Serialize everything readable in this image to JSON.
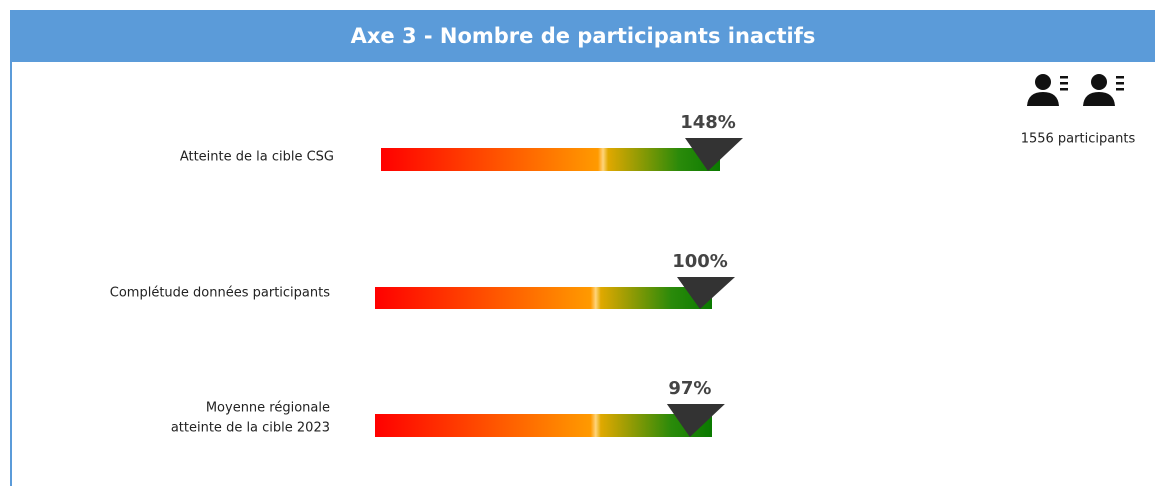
{
  "header": {
    "title": "Axe 3 - Nombre de participants inactifs"
  },
  "participants": {
    "label": "1556 participants"
  },
  "gauges": [
    {
      "label": [
        "Atteinte de la cible CSG"
      ],
      "value": 148,
      "value_label": "148%",
      "xlim": [
        0,
        100
      ]
    },
    {
      "label": [
        "Complétude données participants"
      ],
      "value": 100,
      "value_label": "100%",
      "xlim": [
        0,
        100
      ]
    },
    {
      "label": [
        "Moyenne régionale",
        "atteinte de la cible 2023"
      ],
      "value": 97,
      "value_label": "97%",
      "xlim": [
        0,
        100
      ]
    }
  ]
}
